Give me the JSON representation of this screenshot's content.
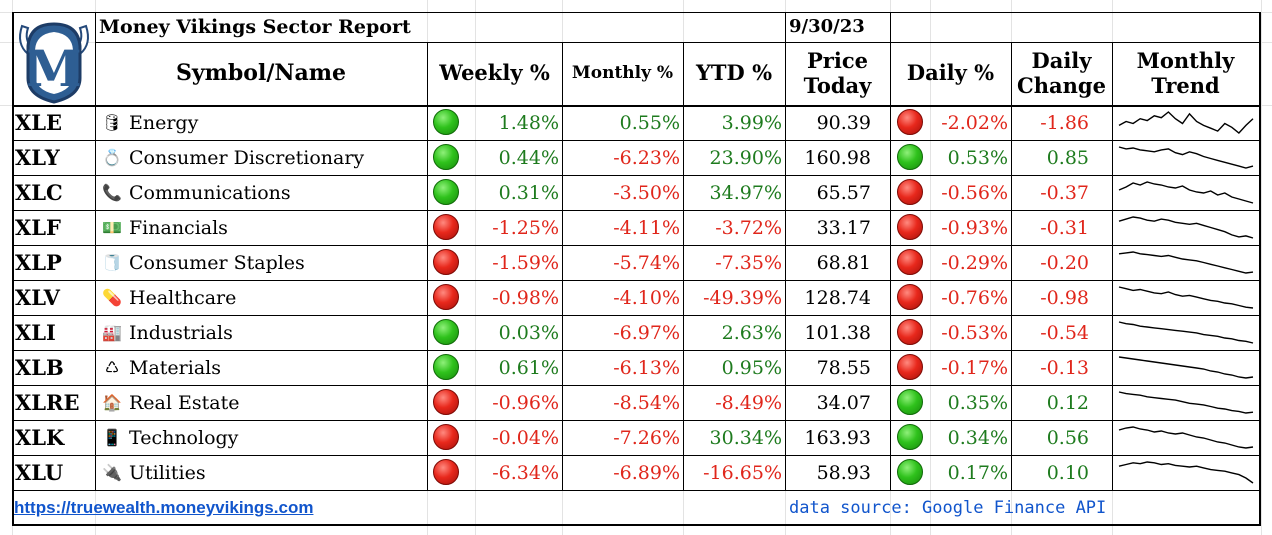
{
  "report": {
    "title": "Money Vikings Sector Report",
    "date": "9/30/23",
    "logo_letter": "M"
  },
  "headers": {
    "symbol_name": "Symbol/Name",
    "weekly": "Weekly %",
    "monthly": "Monthly %",
    "ytd": "YTD %",
    "price_line1": "Price",
    "price_line2": "Today",
    "daily": "Daily %",
    "change_line1": "Daily",
    "change_line2": "Change",
    "trend_line1": "Monthly",
    "trend_line2": "Trend"
  },
  "colors": {
    "positive": "#1e7b1e",
    "negative": "#e0261b",
    "link": "#1155cc",
    "indicator_green": "#2fc21c",
    "indicator_red": "#e8281c"
  },
  "rows": [
    {
      "symbol": "XLE",
      "icon": "oil-barrel-icon",
      "glyph": "🛢",
      "name": "Energy",
      "weekly_dot": "green",
      "weekly": "1.48%",
      "monthly": "0.55%",
      "ytd": "3.99%",
      "price": "90.39",
      "daily_dot": "red",
      "daily": "-2.02%",
      "change": "-1.86",
      "trend": [
        48,
        52,
        50,
        55,
        53,
        58,
        56,
        62,
        55,
        50,
        60,
        52,
        48,
        45,
        42,
        50,
        46,
        40,
        48,
        55
      ]
    },
    {
      "symbol": "XLY",
      "icon": "ring-icon",
      "glyph": "💍",
      "name": "Consumer Discretionary",
      "weekly_dot": "green",
      "weekly": "0.44%",
      "monthly": "-6.23%",
      "ytd": "23.90%",
      "price": "160.98",
      "daily_dot": "green",
      "daily": "0.53%",
      "change": "0.85",
      "trend": [
        60,
        58,
        59,
        57,
        56,
        55,
        57,
        58,
        54,
        52,
        55,
        53,
        50,
        48,
        46,
        44,
        42,
        40,
        38,
        40
      ]
    },
    {
      "symbol": "XLC",
      "icon": "telephone-icon",
      "glyph": "📞",
      "name": "Communications",
      "weekly_dot": "green",
      "weekly": "0.31%",
      "monthly": "-3.50%",
      "ytd": "34.97%",
      "price": "65.57",
      "daily_dot": "red",
      "daily": "-0.56%",
      "change": "-0.37",
      "trend": [
        55,
        58,
        62,
        60,
        63,
        61,
        60,
        58,
        57,
        59,
        55,
        53,
        52,
        54,
        50,
        52,
        48,
        46,
        44,
        42
      ]
    },
    {
      "symbol": "XLF",
      "icon": "money-bag-icon",
      "glyph": "💵",
      "name": "Financials",
      "weekly_dot": "red",
      "weekly": "-1.25%",
      "monthly": "-4.11%",
      "ytd": "-3.72%",
      "price": "33.17",
      "daily_dot": "red",
      "daily": "-0.93%",
      "change": "-0.31",
      "trend": [
        58,
        60,
        62,
        61,
        59,
        58,
        60,
        59,
        57,
        56,
        55,
        56,
        54,
        52,
        50,
        48,
        45,
        43,
        44,
        42
      ]
    },
    {
      "symbol": "XLP",
      "icon": "toilet-paper-icon",
      "glyph": "🧻",
      "name": "Consumer Staples",
      "weekly_dot": "red",
      "weekly": "-1.59%",
      "monthly": "-5.74%",
      "ytd": "-7.35%",
      "price": "68.81",
      "daily_dot": "red",
      "daily": "-0.29%",
      "change": "-0.20",
      "trend": [
        62,
        63,
        64,
        62,
        61,
        60,
        59,
        60,
        58,
        56,
        55,
        54,
        52,
        50,
        48,
        46,
        44,
        42,
        40,
        41
      ]
    },
    {
      "symbol": "XLV",
      "icon": "pill-icon",
      "glyph": "💊",
      "name": "Healthcare",
      "weekly_dot": "red",
      "weekly": "-0.98%",
      "monthly": "-4.10%",
      "ytd": "-49.39%",
      "price": "128.74",
      "daily_dot": "red",
      "daily": "-0.76%",
      "change": "-0.98",
      "trend": [
        64,
        62,
        60,
        61,
        59,
        57,
        56,
        58,
        55,
        53,
        54,
        52,
        50,
        48,
        47,
        45,
        44,
        42,
        40,
        39
      ]
    },
    {
      "symbol": "XLI",
      "icon": "factory-icon",
      "glyph": "🏭",
      "name": "Industrials",
      "weekly_dot": "green",
      "weekly": "0.03%",
      "monthly": "-6.97%",
      "ytd": "2.63%",
      "price": "101.38",
      "daily_dot": "red",
      "daily": "-0.53%",
      "change": "-0.54",
      "trend": [
        63,
        61,
        60,
        58,
        57,
        56,
        55,
        54,
        53,
        52,
        51,
        50,
        48,
        47,
        46,
        44,
        43,
        41,
        40,
        38
      ]
    },
    {
      "symbol": "XLB",
      "icon": "recycle-icon",
      "glyph": "♺",
      "name": "Materials",
      "weekly_dot": "green",
      "weekly": "0.61%",
      "monthly": "-6.13%",
      "ytd": "0.95%",
      "price": "78.55",
      "daily_dot": "red",
      "daily": "-0.17%",
      "change": "-0.13",
      "trend": [
        62,
        61,
        60,
        59,
        58,
        57,
        56,
        55,
        54,
        53,
        52,
        51,
        50,
        48,
        47,
        45,
        44,
        42,
        41,
        42
      ]
    },
    {
      "symbol": "XLRE",
      "icon": "house-icon",
      "glyph": "🏠",
      "name": "Real Estate",
      "weekly_dot": "red",
      "weekly": "-0.96%",
      "monthly": "-8.54%",
      "ytd": "-8.49%",
      "price": "34.07",
      "daily_dot": "green",
      "daily": "0.35%",
      "change": "0.12",
      "trend": [
        64,
        62,
        61,
        60,
        58,
        57,
        56,
        55,
        54,
        52,
        50,
        49,
        48,
        46,
        44,
        43,
        41,
        40,
        38,
        39
      ]
    },
    {
      "symbol": "XLK",
      "icon": "mobile-phone-icon",
      "glyph": "📱",
      "name": "Technology",
      "weekly_dot": "red",
      "weekly": "-0.04%",
      "monthly": "-7.26%",
      "ytd": "30.34%",
      "price": "163.93",
      "daily_dot": "green",
      "daily": "0.34%",
      "change": "0.56",
      "trend": [
        60,
        62,
        63,
        61,
        60,
        58,
        59,
        57,
        56,
        57,
        55,
        53,
        52,
        50,
        48,
        47,
        45,
        43,
        42,
        43
      ]
    },
    {
      "symbol": "XLU",
      "icon": "plug-icon",
      "glyph": "🔌",
      "name": "Utilities",
      "weekly_dot": "red",
      "weekly": "-6.34%",
      "monthly": "-6.89%",
      "ytd": "-16.65%",
      "price": "58.93",
      "daily_dot": "green",
      "daily": "0.17%",
      "change": "0.10",
      "trend": [
        60,
        62,
        64,
        63,
        65,
        64,
        62,
        63,
        61,
        60,
        59,
        60,
        58,
        56,
        55,
        54,
        52,
        50,
        46,
        40
      ]
    }
  ],
  "footer": {
    "link_text": "https://truewealth.moneyvikings.com",
    "source_text": "data source: Google Finance API"
  }
}
